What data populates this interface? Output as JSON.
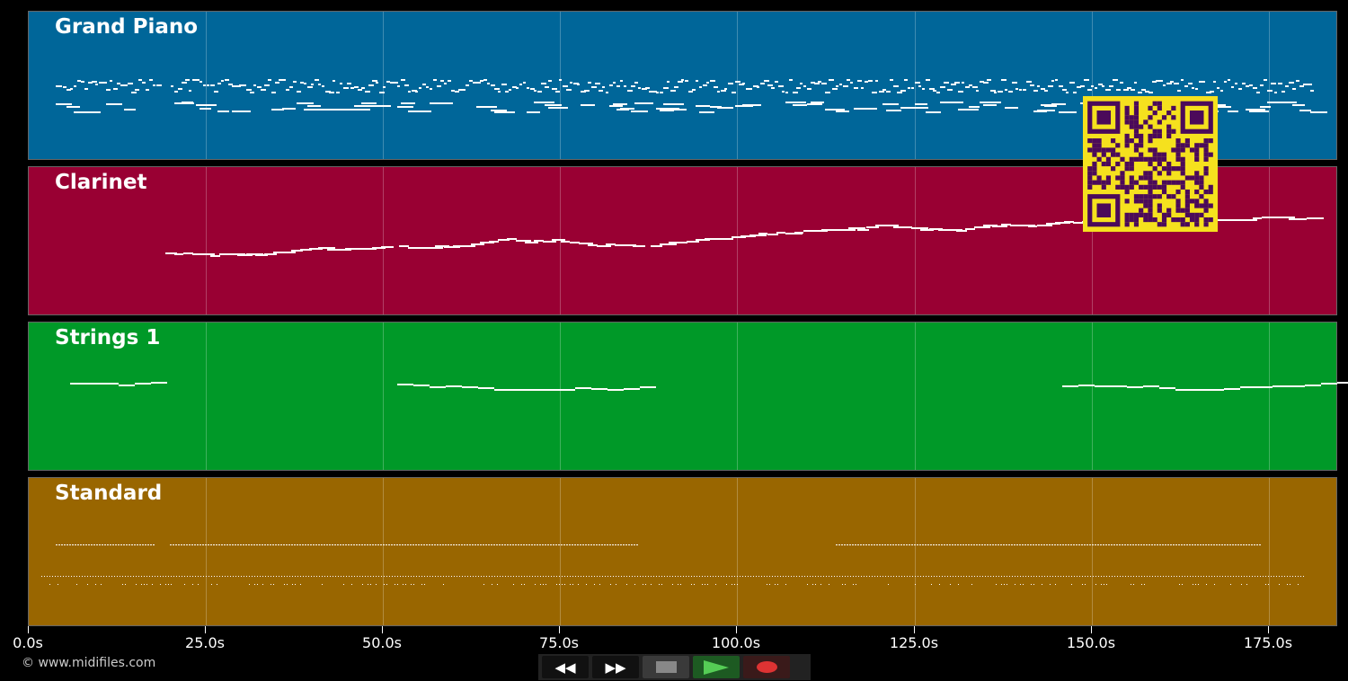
{
  "tracks": [
    {
      "name": "Grand Piano",
      "color": "#006699"
    },
    {
      "name": "Clarinet",
      "color": "#990033"
    },
    {
      "name": "Strings 1",
      "color": "#009928"
    },
    {
      "name": "Standard",
      "color": "#996600"
    }
  ],
  "timeline": {
    "ticks": [
      "0.0s",
      "25.0s",
      "50.0s",
      "75.0s",
      "100.0s",
      "125.0s",
      "150.0s",
      "175.0s"
    ]
  },
  "copyright": "© www.midifiles.com",
  "controls": {
    "rewind": "rewind-icon",
    "fast_forward": "fast-forward-icon",
    "stop": "stop-icon",
    "play": "play-icon",
    "record": "record-icon"
  },
  "qr": {
    "fg": "#4b0a5a",
    "bg": "#f5e11e"
  }
}
